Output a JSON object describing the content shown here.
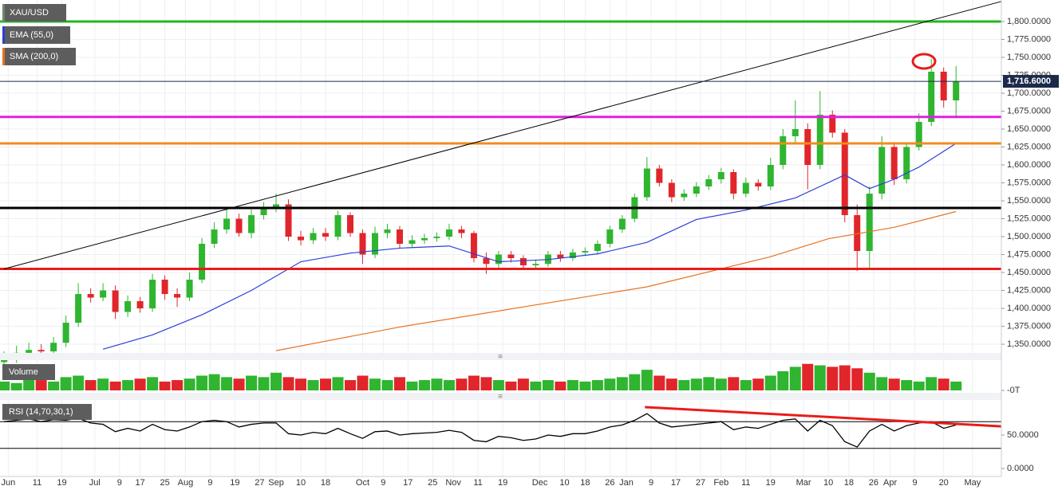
{
  "chart_data": [
    {
      "type": "candlestick",
      "title": "XAU/USD",
      "x": [
        0,
        3,
        6,
        9,
        12,
        15,
        18,
        21,
        24,
        27,
        30,
        33,
        36,
        39,
        42,
        45,
        48,
        51,
        54,
        57,
        60,
        63,
        66,
        69,
        72,
        75,
        78,
        81,
        84,
        87,
        90,
        93,
        96,
        99,
        102,
        105,
        108,
        111,
        114,
        117,
        120,
        123,
        126,
        129,
        132,
        135,
        138,
        141,
        144,
        147,
        150,
        153,
        156,
        159,
        162,
        165,
        168,
        171,
        174,
        177,
        180,
        183,
        186,
        189,
        192,
        195,
        198,
        201,
        204,
        207,
        210,
        213,
        216,
        219,
        222,
        225,
        228,
        231
      ],
      "open": [
        1325,
        1330,
        1338,
        1342,
        1340,
        1352,
        1380,
        1420,
        1415,
        1425,
        1395,
        1410,
        1400,
        1440,
        1420,
        1415,
        1440,
        1490,
        1510,
        1525,
        1505,
        1530,
        1540,
        1545,
        1500,
        1495,
        1505,
        1500,
        1530,
        1505,
        1475,
        1505,
        1510,
        1490,
        1495,
        1498,
        1500,
        1510,
        1505,
        1470,
        1462,
        1475,
        1470,
        1460,
        1462,
        1475,
        1470,
        1478,
        1480,
        1490,
        1510,
        1525,
        1555,
        1595,
        1575,
        1555,
        1560,
        1570,
        1580,
        1590,
        1560,
        1575,
        1570,
        1600,
        1640,
        1650,
        1600,
        1670,
        1645,
        1530,
        1480,
        1560,
        1625,
        1580,
        1625,
        1660,
        1730,
        1690
      ],
      "high": [
        1340,
        1348,
        1352,
        1350,
        1360,
        1390,
        1435,
        1428,
        1435,
        1432,
        1418,
        1416,
        1448,
        1446,
        1428,
        1450,
        1498,
        1520,
        1538,
        1532,
        1538,
        1548,
        1560,
        1552,
        1508,
        1512,
        1512,
        1536,
        1534,
        1510,
        1514,
        1518,
        1515,
        1502,
        1504,
        1506,
        1518,
        1515,
        1508,
        1478,
        1480,
        1480,
        1474,
        1468,
        1480,
        1480,
        1483,
        1485,
        1495,
        1515,
        1530,
        1560,
        1611,
        1600,
        1580,
        1566,
        1576,
        1586,
        1596,
        1594,
        1582,
        1580,
        1610,
        1650,
        1690,
        1658,
        1703,
        1676,
        1650,
        1545,
        1570,
        1640,
        1632,
        1632,
        1672,
        1748,
        1736,
        1738
      ],
      "low": [
        1318,
        1324,
        1332,
        1334,
        1335,
        1346,
        1374,
        1408,
        1410,
        1385,
        1388,
        1394,
        1395,
        1412,
        1402,
        1410,
        1435,
        1484,
        1504,
        1500,
        1498,
        1524,
        1534,
        1494,
        1488,
        1490,
        1494,
        1495,
        1500,
        1462,
        1470,
        1498,
        1484,
        1485,
        1490,
        1493,
        1495,
        1498,
        1464,
        1448,
        1456,
        1464,
        1454,
        1454,
        1458,
        1465,
        1466,
        1473,
        1475,
        1485,
        1505,
        1520,
        1550,
        1570,
        1548,
        1550,
        1555,
        1565,
        1574,
        1552,
        1555,
        1564,
        1565,
        1594,
        1630,
        1566,
        1594,
        1638,
        1520,
        1452,
        1455,
        1552,
        1572,
        1574,
        1620,
        1654,
        1680,
        1665
      ],
      "close": [
        1330,
        1338,
        1342,
        1340,
        1352,
        1380,
        1420,
        1415,
        1425,
        1395,
        1410,
        1400,
        1440,
        1420,
        1415,
        1440,
        1490,
        1510,
        1525,
        1505,
        1530,
        1540,
        1545,
        1500,
        1495,
        1505,
        1500,
        1530,
        1505,
        1475,
        1505,
        1510,
        1490,
        1495,
        1498,
        1500,
        1510,
        1505,
        1470,
        1462,
        1475,
        1470,
        1460,
        1462,
        1475,
        1470,
        1478,
        1480,
        1490,
        1510,
        1525,
        1555,
        1595,
        1575,
        1555,
        1560,
        1570,
        1580,
        1590,
        1560,
        1575,
        1570,
        1600,
        1640,
        1650,
        1600,
        1670,
        1645,
        1530,
        1480,
        1560,
        1625,
        1580,
        1625,
        1660,
        1730,
        1690,
        1716.6
      ],
      "up_color": "#2fb52f",
      "down_color": "#e0262b",
      "xlim": [
        -1,
        242
      ],
      "ylim": [
        1337.8,
        1830
      ],
      "yticks": [
        {
          "value": 1350,
          "label": "1,350.0000"
        },
        {
          "value": 1375,
          "label": "1,375.0000"
        },
        {
          "value": 1400,
          "label": "1,400.0000"
        },
        {
          "value": 1425,
          "label": "1,425.0000"
        },
        {
          "value": 1450,
          "label": "1,450.0000"
        },
        {
          "value": 1475,
          "label": "1,475.0000"
        },
        {
          "value": 1500,
          "label": "1,500.0000"
        },
        {
          "value": 1525,
          "label": "1,525.0000"
        },
        {
          "value": 1550,
          "label": "1,550.0000"
        },
        {
          "value": 1575,
          "label": "1,575.0000"
        },
        {
          "value": 1600,
          "label": "1,600.0000"
        },
        {
          "value": 1625,
          "label": "1,625.0000"
        },
        {
          "value": 1650,
          "label": "1,650.0000"
        },
        {
          "value": 1675,
          "label": "1,675.0000"
        },
        {
          "value": 1700,
          "label": "1,700.0000"
        },
        {
          "value": 1725,
          "label": "1,725.0000"
        },
        {
          "value": 1750,
          "label": "1,750.0000"
        },
        {
          "value": 1775,
          "label": "1,775.0000"
        },
        {
          "value": 1800,
          "label": "1,800.0000"
        }
      ],
      "series": [
        {
          "name": "EMA (55,0)",
          "color": "#2a3fd6",
          "x": [
            24,
            36,
            48,
            60,
            72,
            84,
            96,
            108,
            120,
            132,
            144,
            156,
            168,
            180,
            192,
            204,
            210,
            216,
            222,
            231
          ],
          "values": [
            1343,
            1363,
            1391,
            1425,
            1465,
            1477,
            1484,
            1487,
            1465,
            1468,
            1476,
            1492,
            1524,
            1537,
            1554,
            1586,
            1567,
            1580,
            1597,
            1630
          ]
        },
        {
          "name": "SMA (200,0)",
          "color": "#e8731e",
          "x": [
            66,
            96,
            126,
            156,
            186,
            200,
            216,
            231
          ],
          "values": [
            1341,
            1374,
            1402,
            1430,
            1472,
            1497,
            1513,
            1535
          ]
        }
      ],
      "levels": [
        {
          "value": 1800,
          "color": "#22b822"
        },
        {
          "value": 1667,
          "color": "#e020e0"
        },
        {
          "value": 1630,
          "color": "#f08c1a"
        },
        {
          "value": 1540,
          "color": "#000000"
        },
        {
          "value": 1455,
          "color": "#e81c1c"
        }
      ],
      "trendline": {
        "x": [
          0,
          242
        ],
        "values": [
          1455,
          1828
        ],
        "color": "#000000"
      },
      "last_price": {
        "value": 1716.6,
        "label": "1,716.6000"
      }
    },
    {
      "type": "bar",
      "title": "Volume",
      "values": [
        30,
        25,
        40,
        35,
        30,
        45,
        50,
        35,
        40,
        30,
        35,
        40,
        45,
        30,
        35,
        40,
        50,
        55,
        45,
        40,
        50,
        45,
        60,
        45,
        40,
        35,
        40,
        45,
        35,
        50,
        40,
        35,
        45,
        30,
        35,
        40,
        35,
        40,
        50,
        45,
        35,
        30,
        40,
        30,
        35,
        30,
        35,
        30,
        35,
        40,
        45,
        55,
        70,
        50,
        40,
        35,
        40,
        45,
        40,
        45,
        35,
        40,
        50,
        65,
        80,
        90,
        85,
        80,
        85,
        75,
        60,
        45,
        40,
        35,
        30,
        45,
        40,
        30
      ],
      "ylim": [
        0,
        100
      ],
      "yticks": [
        {
          "value": 0,
          "label": "-0T"
        }
      ]
    },
    {
      "type": "line",
      "title": "RSI (14,70,30,1)",
      "color": "#000000",
      "values": [
        70,
        72,
        74,
        70,
        73,
        72,
        75,
        68,
        66,
        55,
        60,
        56,
        66,
        58,
        56,
        62,
        70,
        72,
        70,
        62,
        66,
        68,
        68,
        52,
        50,
        54,
        52,
        60,
        52,
        45,
        55,
        56,
        50,
        52,
        53,
        54,
        57,
        54,
        42,
        40,
        48,
        46,
        42,
        44,
        50,
        48,
        52,
        52,
        56,
        62,
        65,
        72,
        82,
        68,
        62,
        64,
        66,
        68,
        70,
        58,
        62,
        60,
        66,
        72,
        74,
        56,
        72,
        64,
        40,
        32,
        56,
        66,
        56,
        64,
        68,
        70,
        60,
        65
      ],
      "ylim": [
        0,
        100
      ],
      "yticks": [
        {
          "value": 50,
          "label": "50.0000"
        },
        {
          "value": 0,
          "label": "0.0000"
        }
      ],
      "levels": [
        30,
        70
      ],
      "trendline": {
        "x": [
          155.5,
          242
        ],
        "values": [
          91.7,
          63
        ],
        "color": "#e81c1c"
      },
      "xticks": [
        {
          "value": 1,
          "label": "Jun"
        },
        {
          "value": 8,
          "label": "11"
        },
        {
          "value": 14,
          "label": "19"
        },
        {
          "value": 22,
          "label": "Jul"
        },
        {
          "value": 28,
          "label": "9"
        },
        {
          "value": 33,
          "label": "17"
        },
        {
          "value": 39,
          "label": "25"
        },
        {
          "value": 44,
          "label": "Aug"
        },
        {
          "value": 50,
          "label": "9"
        },
        {
          "value": 56,
          "label": "19"
        },
        {
          "value": 62,
          "label": "27"
        },
        {
          "value": 66,
          "label": "Sep"
        },
        {
          "value": 72,
          "label": "10"
        },
        {
          "value": 78,
          "label": "18"
        },
        {
          "value": 87,
          "label": "Oct"
        },
        {
          "value": 92,
          "label": "9"
        },
        {
          "value": 98,
          "label": "17"
        },
        {
          "value": 104,
          "label": "25"
        },
        {
          "value": 109,
          "label": "Nov"
        },
        {
          "value": 115,
          "label": "11"
        },
        {
          "value": 121,
          "label": "19"
        },
        {
          "value": 130,
          "label": "Dec"
        },
        {
          "value": 136,
          "label": "10"
        },
        {
          "value": 141,
          "label": "18"
        },
        {
          "value": 147,
          "label": "26"
        },
        {
          "value": 151,
          "label": "Jan"
        },
        {
          "value": 157,
          "label": "9"
        },
        {
          "value": 163,
          "label": "17"
        },
        {
          "value": 169,
          "label": "27"
        },
        {
          "value": 174,
          "label": "Feb"
        },
        {
          "value": 180,
          "label": "11"
        },
        {
          "value": 186,
          "label": "19"
        },
        {
          "value": 194,
          "label": "Mar"
        },
        {
          "value": 200,
          "label": "10"
        },
        {
          "value": 205,
          "label": "18"
        },
        {
          "value": 211,
          "label": "26"
        },
        {
          "value": 215,
          "label": "Apr"
        },
        {
          "value": 221,
          "label": "9"
        },
        {
          "value": 228,
          "label": "20"
        },
        {
          "value": 235,
          "label": "May"
        }
      ]
    }
  ]
}
